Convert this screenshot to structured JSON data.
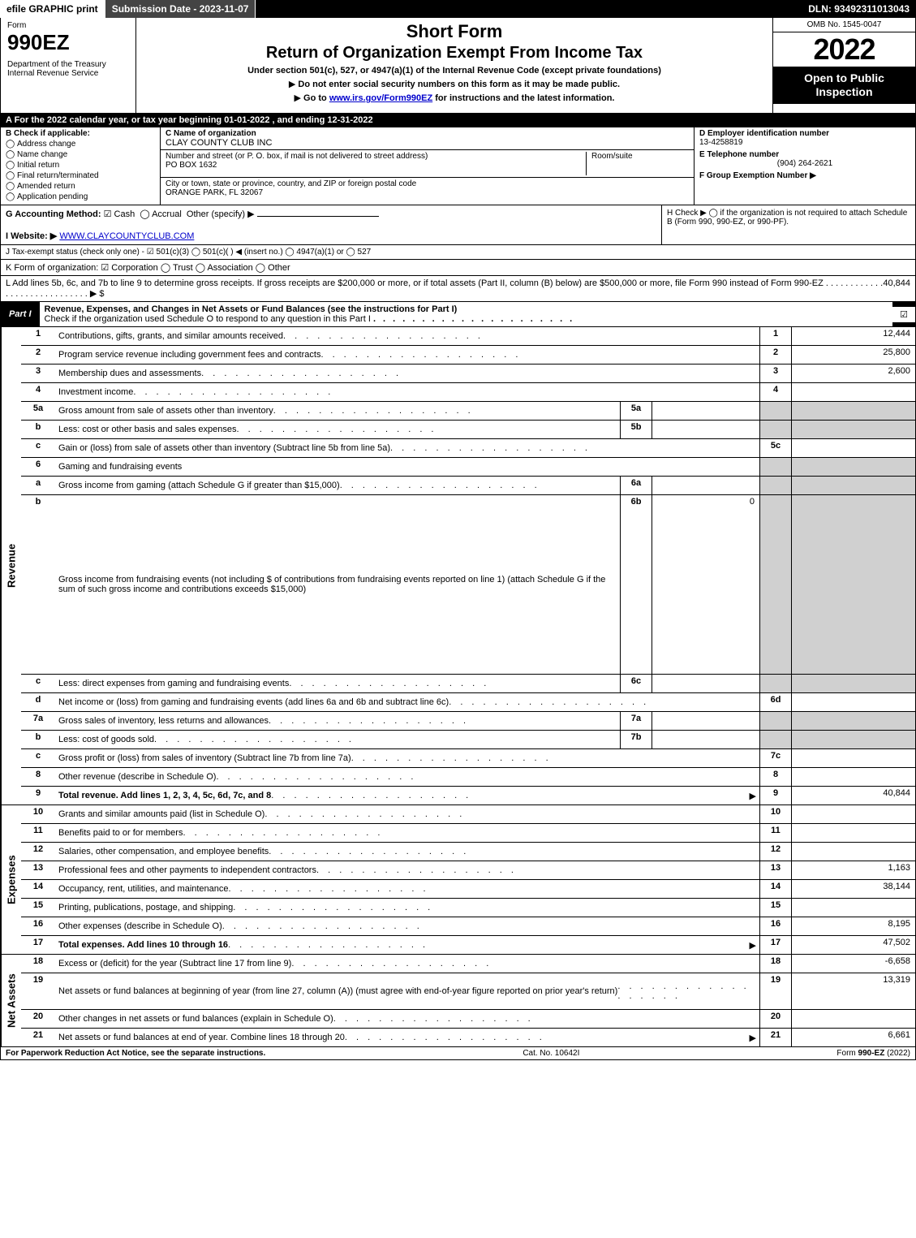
{
  "topbar": {
    "efile": "efile GRAPHIC print",
    "submission": "Submission Date - 2023-11-07",
    "dln": "DLN: 93492311013043"
  },
  "header": {
    "form_label": "Form",
    "form_name": "990EZ",
    "dept": "Department of the Treasury\nInternal Revenue Service",
    "title1": "Short Form",
    "title2": "Return of Organization Exempt From Income Tax",
    "subtitle": "Under section 501(c), 527, or 4947(a)(1) of the Internal Revenue Code (except private foundations)",
    "instr1": "Do not enter social security numbers on this form as it may be made public.",
    "instr2_pre": "Go to ",
    "instr2_link": "www.irs.gov/Form990EZ",
    "instr2_post": " for instructions and the latest information.",
    "omb": "OMB No. 1545-0047",
    "year": "2022",
    "open": "Open to Public Inspection"
  },
  "row_a": "A  For the 2022 calendar year, or tax year beginning 01-01-2022  , and ending 12-31-2022",
  "b": {
    "label": "B  Check if applicable:",
    "items": [
      "Address change",
      "Name change",
      "Initial return",
      "Final return/terminated",
      "Amended return",
      "Application pending"
    ]
  },
  "c": {
    "label": "C Name of organization",
    "name": "CLAY COUNTY CLUB INC",
    "addr_label": "Number and street (or P. O. box, if mail is not delivered to street address)",
    "room_label": "Room/suite",
    "addr": "PO BOX 1632",
    "city_label": "City or town, state or province, country, and ZIP or foreign postal code",
    "city": "ORANGE PARK, FL  32067"
  },
  "d": {
    "label": "D Employer identification number",
    "val": "13-4258819",
    "e_label": "E Telephone number",
    "e_val": "(904) 264-2621",
    "f_label": "F Group Exemption Number  ▶"
  },
  "g": {
    "label": "G Accounting Method:",
    "cash": "Cash",
    "accrual": "Accrual",
    "other": "Other (specify) ▶"
  },
  "h": "H  Check ▶   ◯  if the organization is not required to attach Schedule B (Form 990, 990-EZ, or 990-PF).",
  "i": {
    "label": "I Website: ▶",
    "val": "WWW.CLAYCOUNTYCLUB.COM"
  },
  "j": "J Tax-exempt status (check only one) -  ☑ 501(c)(3)  ◯ 501(c)(  ) ◀ (insert no.)  ◯ 4947(a)(1) or  ◯ 527",
  "k": "K Form of organization:   ☑ Corporation   ◯ Trust   ◯ Association   ◯ Other",
  "l": {
    "text": "L Add lines 5b, 6c, and 7b to line 9 to determine gross receipts. If gross receipts are $200,000 or more, or if total assets (Part II, column (B) below) are $500,000 or more, file Form 990 instead of Form 990-EZ  .  .  .  .  .  .  .  .  .  .  .  .  .  .  .  .  .  .  .  .  .  .  .  .  .  .  .  .  .   ▶ $",
    "amount": "40,844"
  },
  "part1": {
    "label": "Part I",
    "title": "Revenue, Expenses, and Changes in Net Assets or Fund Balances (see the instructions for Part I)",
    "check_text": "Check if the organization used Schedule O to respond to any question in this Part I",
    "check_mark": "☑"
  },
  "revenue": {
    "side": "Revenue",
    "lines": [
      {
        "n": "1",
        "d": "Contributions, gifts, grants, and similar amounts received",
        "cn": "1",
        "cv": "12,444"
      },
      {
        "n": "2",
        "d": "Program service revenue including government fees and contracts",
        "cn": "2",
        "cv": "25,800"
      },
      {
        "n": "3",
        "d": "Membership dues and assessments",
        "cn": "3",
        "cv": "2,600"
      },
      {
        "n": "4",
        "d": "Investment income",
        "cn": "4",
        "cv": ""
      },
      {
        "n": "5a",
        "d": "Gross amount from sale of assets other than inventory",
        "mn": "5a",
        "mv": "",
        "shade": true
      },
      {
        "n": "b",
        "d": "Less: cost or other basis and sales expenses",
        "mn": "5b",
        "mv": "",
        "shade": true
      },
      {
        "n": "c",
        "d": "Gain or (loss) from sale of assets other than inventory (Subtract line 5b from line 5a)",
        "cn": "5c",
        "cv": ""
      },
      {
        "n": "6",
        "d": "Gaming and fundraising events",
        "shade_all": true
      },
      {
        "n": "a",
        "d": "Gross income from gaming (attach Schedule G if greater than $15,000)",
        "mn": "6a",
        "mv": "",
        "shade": true
      },
      {
        "n": "b",
        "d": "Gross income from fundraising events (not including $                        of contributions from fundraising events reported on line 1) (attach Schedule G if the sum of such gross income and contributions exceeds $15,000)",
        "mn": "6b",
        "mv": "0",
        "shade": true,
        "tall": true
      },
      {
        "n": "c",
        "d": "Less: direct expenses from gaming and fundraising events",
        "mn": "6c",
        "mv": "",
        "shade": true
      },
      {
        "n": "d",
        "d": "Net income or (loss) from gaming and fundraising events (add lines 6a and 6b and subtract line 6c)",
        "cn": "6d",
        "cv": ""
      },
      {
        "n": "7a",
        "d": "Gross sales of inventory, less returns and allowances",
        "mn": "7a",
        "mv": "",
        "shade": true
      },
      {
        "n": "b",
        "d": "Less: cost of goods sold",
        "mn": "7b",
        "mv": "",
        "shade": true
      },
      {
        "n": "c",
        "d": "Gross profit or (loss) from sales of inventory (Subtract line 7b from line 7a)",
        "cn": "7c",
        "cv": ""
      },
      {
        "n": "8",
        "d": "Other revenue (describe in Schedule O)",
        "cn": "8",
        "cv": ""
      },
      {
        "n": "9",
        "d": "Total revenue. Add lines 1, 2, 3, 4, 5c, 6d, 7c, and 8",
        "cn": "9",
        "cv": "40,844",
        "bold": true,
        "arrow": true
      }
    ]
  },
  "expenses": {
    "side": "Expenses",
    "lines": [
      {
        "n": "10",
        "d": "Grants and similar amounts paid (list in Schedule O)",
        "cn": "10",
        "cv": ""
      },
      {
        "n": "11",
        "d": "Benefits paid to or for members",
        "cn": "11",
        "cv": ""
      },
      {
        "n": "12",
        "d": "Salaries, other compensation, and employee benefits",
        "cn": "12",
        "cv": ""
      },
      {
        "n": "13",
        "d": "Professional fees and other payments to independent contractors",
        "cn": "13",
        "cv": "1,163"
      },
      {
        "n": "14",
        "d": "Occupancy, rent, utilities, and maintenance",
        "cn": "14",
        "cv": "38,144"
      },
      {
        "n": "15",
        "d": "Printing, publications, postage, and shipping",
        "cn": "15",
        "cv": ""
      },
      {
        "n": "16",
        "d": "Other expenses (describe in Schedule O)",
        "cn": "16",
        "cv": "8,195"
      },
      {
        "n": "17",
        "d": "Total expenses. Add lines 10 through 16",
        "cn": "17",
        "cv": "47,502",
        "bold": true,
        "arrow": true
      }
    ]
  },
  "netassets": {
    "side": "Net Assets",
    "lines": [
      {
        "n": "18",
        "d": "Excess or (deficit) for the year (Subtract line 17 from line 9)",
        "cn": "18",
        "cv": "-6,658"
      },
      {
        "n": "19",
        "d": "Net assets or fund balances at beginning of year (from line 27, column (A)) (must agree with end-of-year figure reported on prior year's return)",
        "cn": "19",
        "cv": "13,319",
        "tall": true
      },
      {
        "n": "20",
        "d": "Other changes in net assets or fund balances (explain in Schedule O)",
        "cn": "20",
        "cv": ""
      },
      {
        "n": "21",
        "d": "Net assets or fund balances at end of year. Combine lines 18 through 20",
        "cn": "21",
        "cv": "6,661",
        "arrow": true
      }
    ]
  },
  "footer": {
    "left": "For Paperwork Reduction Act Notice, see the separate instructions.",
    "mid": "Cat. No. 10642I",
    "right": "Form 990-EZ (2022)"
  }
}
